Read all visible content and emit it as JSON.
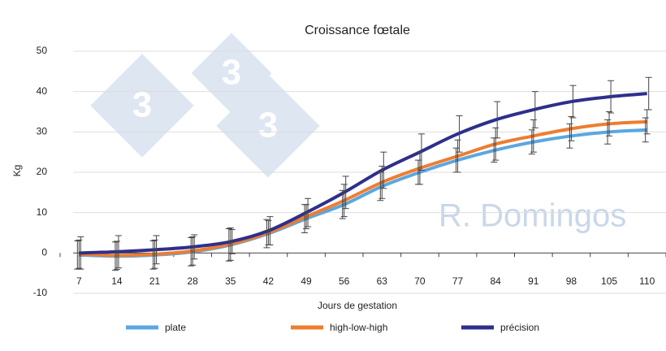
{
  "chart_data": {
    "type": "line",
    "title": "Croissance fœtale",
    "x_label": "Jours de gestation",
    "y_label": "Kg",
    "watermark": "R. Domingos",
    "logo_text": "3",
    "categories": [
      "7",
      "14",
      "21",
      "28",
      "35",
      "42",
      "49",
      "56",
      "63",
      "70",
      "77",
      "84",
      "91",
      "98",
      "105",
      "110"
    ],
    "ylim": [
      -10,
      50
    ],
    "yticks": [
      -10,
      0,
      10,
      20,
      30,
      40,
      50
    ],
    "grid": true,
    "series": [
      {
        "name": "plate",
        "color": "#5ba7e1",
        "values": [
          -0.5,
          -0.8,
          -0.5,
          0.3,
          2,
          4.8,
          8.5,
          12,
          16.5,
          20,
          23,
          25.5,
          27.5,
          29,
          30,
          30.5
        ],
        "errors": [
          3.5,
          3.5,
          3.5,
          3.5,
          4,
          3.5,
          3.5,
          3.5,
          3.5,
          3,
          3,
          3,
          3,
          3,
          3,
          3
        ]
      },
      {
        "name": "high-low-high",
        "color": "#ee7d30",
        "values": [
          -0.3,
          -0.6,
          -0.3,
          0.5,
          2.2,
          5,
          9,
          13,
          17.5,
          21,
          24,
          27,
          29,
          30.8,
          32,
          32.5
        ],
        "errors": [
          3.5,
          3.5,
          3.5,
          3.5,
          4,
          3,
          3,
          4,
          4,
          4,
          4,
          4,
          4,
          3,
          3,
          3
        ]
      },
      {
        "name": "précision",
        "color": "#2e2f8c",
        "values": [
          0,
          0.3,
          0.8,
          1.5,
          2.8,
          5.5,
          10,
          15,
          20.5,
          25,
          29.5,
          33,
          35.5,
          37.5,
          38.7,
          39.5
        ],
        "errors": [
          4,
          4,
          3.5,
          3,
          3,
          3.5,
          3.5,
          4,
          4.5,
          4.5,
          4.5,
          4.5,
          4.5,
          4,
          4,
          4
        ]
      }
    ]
  }
}
